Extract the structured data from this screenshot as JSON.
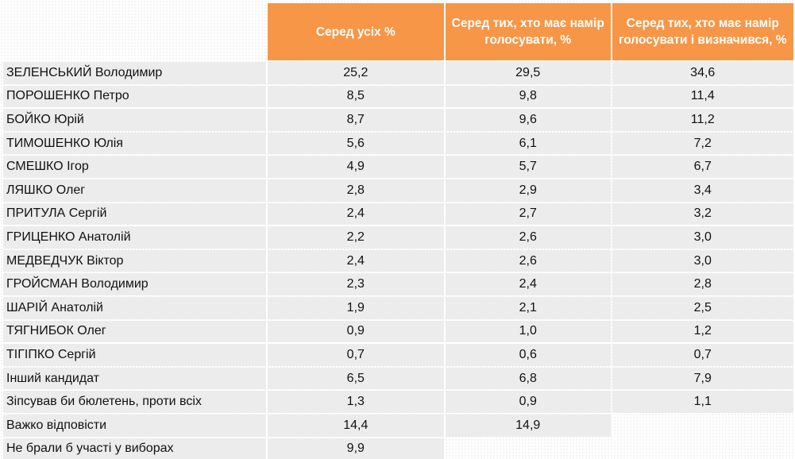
{
  "chart_data": {
    "type": "table",
    "columns": [
      "",
      "Серед усіх %",
      "Серед тих, хто має намір голосувати, %",
      "Серед тих, хто має намір голосувати і визначився, %"
    ],
    "rows": [
      {
        "name": "ЗЕЛЕНСЬКИЙ Володимир",
        "values": [
          "25,2",
          "29,5",
          "34,6"
        ]
      },
      {
        "name": "ПОРОШЕНКО Петро",
        "values": [
          "8,5",
          "9,8",
          "11,4"
        ]
      },
      {
        "name": "БОЙКО Юрій",
        "values": [
          "8,7",
          "9,6",
          "11,2"
        ]
      },
      {
        "name": "ТИМОШЕНКО Юлія",
        "values": [
          "5,6",
          "6,1",
          "7,2"
        ]
      },
      {
        "name": "СМЕШКО Ігор",
        "values": [
          "4,9",
          "5,7",
          "6,7"
        ]
      },
      {
        "name": "ЛЯШКО Олег",
        "values": [
          "2,8",
          "2,9",
          "3,4"
        ]
      },
      {
        "name": "ПРИТУЛА Сергій",
        "values": [
          "2,4",
          "2,7",
          "3,2"
        ]
      },
      {
        "name": "ГРИЦЕНКО Анатолій",
        "values": [
          "2,2",
          "2,6",
          "3,0"
        ]
      },
      {
        "name": "МЕДВЕДЧУК Віктор",
        "values": [
          "2,4",
          "2,6",
          "3,0"
        ]
      },
      {
        "name": "ГРОЙСМАН Володимир",
        "values": [
          "2,3",
          "2,4",
          "2,8"
        ]
      },
      {
        "name": "ШАРІЙ Анатолій",
        "values": [
          "1,9",
          "2,1",
          "2,5"
        ]
      },
      {
        "name": "ТЯГНИБОК Олег",
        "values": [
          "0,9",
          "1,0",
          "1,2"
        ]
      },
      {
        "name": "ТІГІПКО Сергій",
        "values": [
          "0,7",
          "0,6",
          "0,7"
        ]
      },
      {
        "name": "Інший кандидат",
        "values": [
          "6,5",
          "6,8",
          "7,9"
        ]
      },
      {
        "name": "Зіпсував би бюлетень, проти всіх",
        "values": [
          "1,3",
          "0,9",
          "1,1"
        ]
      },
      {
        "name": "Важко відповісти",
        "values": [
          "14,4",
          "14,9",
          null
        ]
      },
      {
        "name": "Не брали б участі у виборах",
        "values": [
          "9,9",
          null,
          null
        ]
      }
    ],
    "header_color": "#f79646",
    "row_color": "#ececec"
  }
}
